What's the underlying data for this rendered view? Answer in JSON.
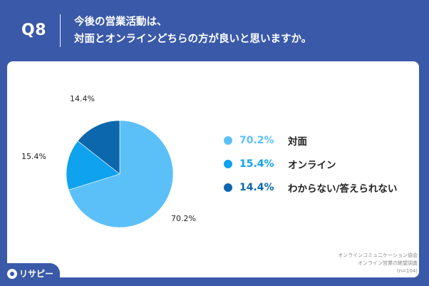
{
  "header": {
    "question": "Q8",
    "title_line1": "今後の営業活動は、",
    "title_line2": "対面とオンラインどちらの方が良いと思いますか。"
  },
  "chart_data": {
    "type": "pie",
    "start": "12 o'clock, clockwise",
    "slices": [
      {
        "label": "対面",
        "value": 70.2,
        "display": "70.2%",
        "color": "#5cc0f8"
      },
      {
        "label": "オンライン",
        "value": 15.4,
        "display": "15.4%",
        "color": "#0fa2ee"
      },
      {
        "label": "わからない/答えられない",
        "value": 14.4,
        "display": "14.4%",
        "color": "#0c67ad"
      }
    ],
    "legend_position": "right"
  },
  "source": {
    "line1": "オンラインコミュニケーション協会",
    "line2": "オンライン営業の絶望調査",
    "line3": "(n=104)"
  },
  "brand": {
    "name": "リサピー",
    "icon": "speech-bubble-icon"
  },
  "colors": {
    "background": "#3a59a8",
    "card": "#ffffff"
  }
}
